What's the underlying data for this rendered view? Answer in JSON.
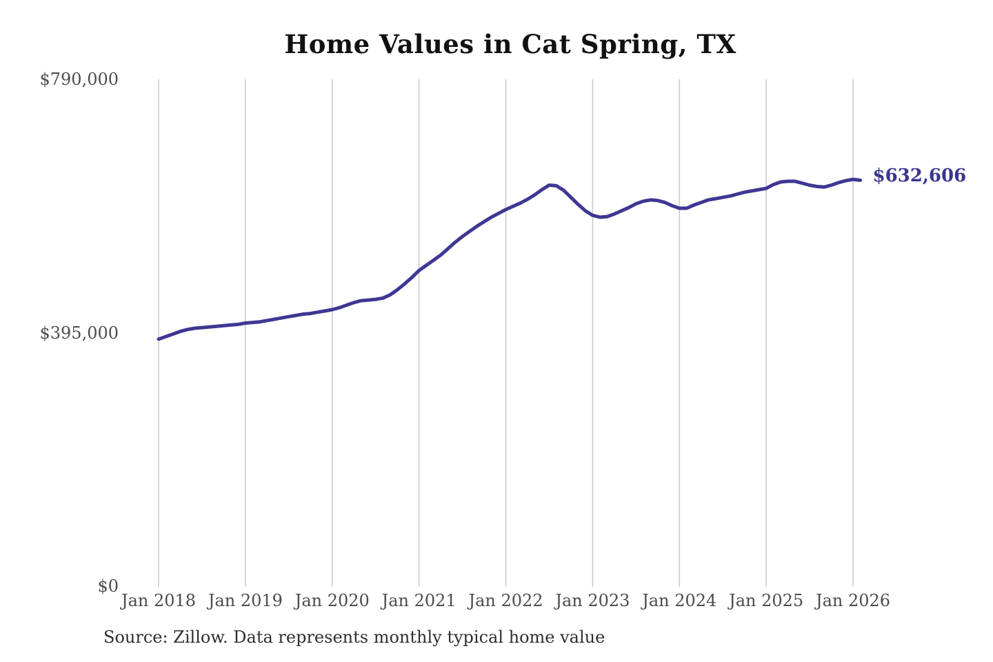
{
  "title": "Home Values in Cat Spring, TX",
  "source_note": "Source: Zillow. Data represents monthly typical home value",
  "annotation": {
    "label": "$632,606"
  },
  "colors": {
    "line": "#3e3793",
    "annotation_text": "#3a3490",
    "gridline": "#cccccc",
    "tick_label": "#4c4c4c",
    "title_text": "#111111",
    "source_text": "#2e2e2e",
    "background": "#ffffff"
  },
  "chart_data": {
    "type": "line",
    "title": "Home Values in Cat Spring, TX",
    "xlabel": "",
    "ylabel": "",
    "x_start": "2018-01",
    "x_interval": "month",
    "x_tick_labels": [
      "Jan 2018",
      "Jan 2019",
      "Jan 2020",
      "Jan 2021",
      "Jan 2022",
      "Jan 2023",
      "Jan 2024",
      "Jan 2025",
      "Jan 2026"
    ],
    "x_tick_month_indices": [
      0,
      12,
      24,
      36,
      48,
      60,
      72,
      84,
      96
    ],
    "y_ticks": [
      {
        "label": "$0",
        "value": 0
      },
      {
        "label": "$395,000",
        "value": 395000
      },
      {
        "label": "$790,000",
        "value": 790000
      }
    ],
    "ylim": [
      0,
      790000
    ],
    "grid": "vertical",
    "legend": "none",
    "last_value_label": "$632,606",
    "series_name": "Typical home value (monthly)",
    "values": [
      385000,
      389000,
      393000,
      397000,
      400000,
      402000,
      403000,
      404000,
      405000,
      406000,
      407000,
      408000,
      410000,
      411000,
      412000,
      414000,
      416000,
      418000,
      420000,
      422000,
      424000,
      425000,
      427000,
      429000,
      431000,
      434000,
      438000,
      442000,
      445000,
      446000,
      447000,
      449000,
      454000,
      462000,
      471000,
      481000,
      492000,
      500000,
      508000,
      516000,
      526000,
      536000,
      545000,
      553000,
      561000,
      568000,
      575000,
      581000,
      587000,
      592000,
      597000,
      603000,
      610000,
      618000,
      625000,
      624000,
      617000,
      606000,
      595000,
      585000,
      578000,
      575000,
      576000,
      580000,
      585000,
      590000,
      596000,
      600000,
      602000,
      601000,
      598000,
      593000,
      589000,
      589000,
      594000,
      598000,
      602000,
      604000,
      606000,
      608000,
      611000,
      614000,
      616000,
      618000,
      620000,
      626000,
      630000,
      631000,
      631000,
      628000,
      625000,
      623000,
      622000,
      625000,
      629000,
      632000,
      634000,
      632606
    ]
  }
}
